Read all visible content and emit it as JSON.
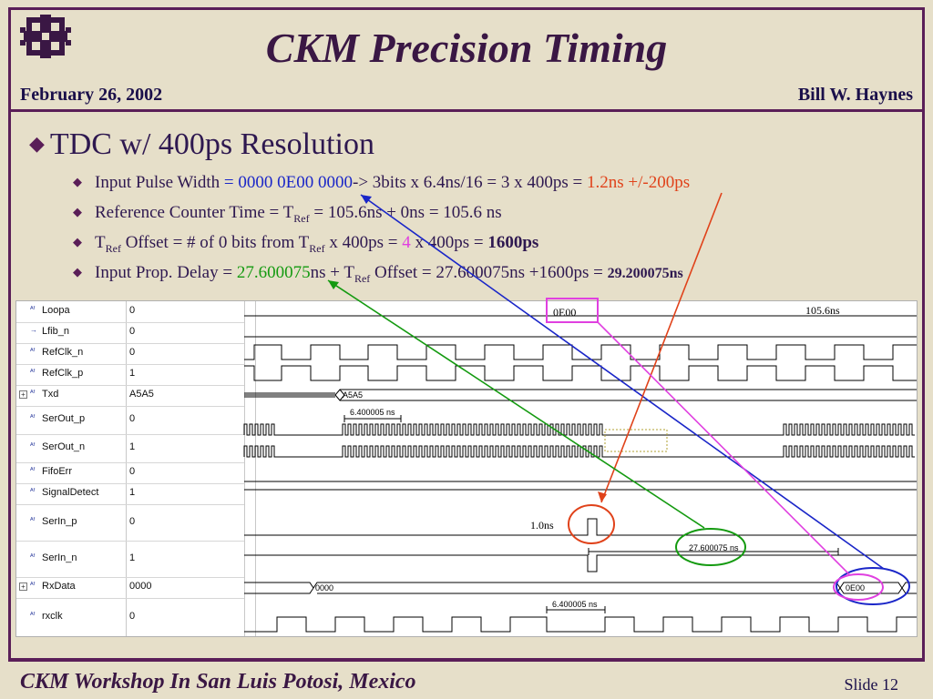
{
  "header": {
    "title": "CKM Precision Timing",
    "date": "February 26, 2002",
    "author": "Bill W. Haynes"
  },
  "bullets": {
    "main": "TDC w/ 400ps Resolution",
    "b1": {
      "pre": "Input Pulse Width ",
      "eq": "= ",
      "blue": "0000 0E00 0000",
      "mid": "-> 3bits x 6.4ns/16 = 3 x 400ps = ",
      "orange": "1.2ns +/-200ps"
    },
    "b2": {
      "pre": "Reference Counter Time = T",
      "sub": "Ref",
      "post": "  = 105.6ns  + 0ns = 105.6 ns"
    },
    "b3": {
      "t": "T",
      "sub1": "Ref",
      "a": " Offset  = # of 0 bits from T",
      "sub2": "Ref",
      "b": "  x 400ps = ",
      "magenta": "4",
      "c": " x 400ps = ",
      "bold": "1600ps"
    },
    "b4": {
      "pre": "Input Prop. Delay = ",
      "green": "27.600075",
      "mid": "ns + T",
      "sub": "Ref",
      "post": " Offset = 27.600075ns +1600ps = ",
      "bold": "29.200075ns"
    }
  },
  "waveform": {
    "signals": [
      {
        "name": "Loopa",
        "value": "0"
      },
      {
        "name": "Lfib_n",
        "value": "0"
      },
      {
        "name": "RefClk_n",
        "value": "0"
      },
      {
        "name": "RefClk_p",
        "value": "1"
      },
      {
        "name": "Txd",
        "value": "A5A5"
      },
      {
        "name": "SerOut_p",
        "value": "0"
      },
      {
        "name": "SerOut_n",
        "value": "1"
      },
      {
        "name": "FifoErr",
        "value": "0"
      },
      {
        "name": "SignalDetect",
        "value": "1"
      },
      {
        "name": "SerIn_p",
        "value": "0"
      },
      {
        "name": "SerIn_n",
        "value": "1"
      },
      {
        "name": "RxData",
        "value": "0000"
      },
      {
        "name": "rxclk",
        "value": "0"
      }
    ],
    "labels": {
      "txd_bus": "A5A5",
      "serout_period": "6.400005 ns",
      "rx_delay": "27.600075 ns",
      "rxdata_a": "0000",
      "rxdata_b": "0E00",
      "rxclk_period": "6.400005 ns",
      "pulse_width": "1.0ns",
      "ref_counter": "105.6ns",
      "box_value": "0E00"
    }
  },
  "footer": {
    "workshop": "CKM Workshop In San Luis Potosi, Mexico",
    "slide": "Slide 12"
  },
  "colors": {
    "frame": "#5a1e58",
    "title": "#3a1744",
    "blue": "#1a26c8",
    "orange": "#e0421a",
    "green": "#149a10",
    "magenta": "#e040e0"
  }
}
